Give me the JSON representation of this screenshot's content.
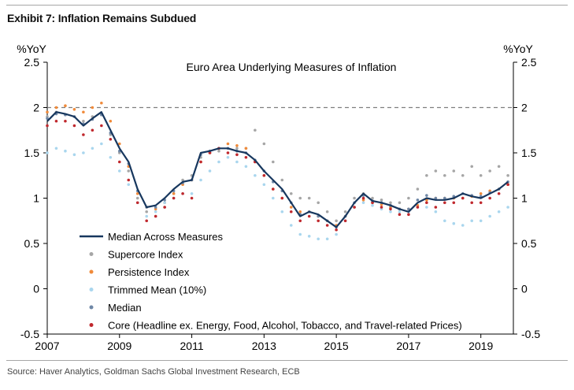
{
  "header": {
    "exhibit_title": "Exhibit 7: Inflation Remains Subdued"
  },
  "footer": {
    "source": "Source: Haver Analytics, Goldman Sachs Global Investment Research, ECB"
  },
  "colors": {
    "median_line": "#17375e",
    "supercore": "#a6a6a6",
    "persistence": "#f08a3a",
    "trimmed_mean": "#a9d6ee",
    "median_dots": "#6f87a6",
    "core": "#c0282d",
    "reference_line": "#7f7f7f"
  },
  "chart_data": {
    "type": "line",
    "title": "Euro Area Underlying Measures of Inflation",
    "ylabel_left": "%YoY",
    "ylabel_right": "%YoY",
    "ylim": [
      -0.5,
      2.5
    ],
    "yticks": [
      "2.5",
      "2",
      "1.5",
      "1",
      "0.5",
      "0",
      "-0.5"
    ],
    "xlim": [
      2007,
      2019.9
    ],
    "xticks": [
      "2007",
      "2009",
      "2011",
      "2013",
      "2015",
      "2017",
      "2019"
    ],
    "reference_line": 2,
    "legend": [
      "Median Across Measures",
      "Supercore Index",
      "Persistence Index",
      "Trimmed Mean (10%)",
      "Median",
      "Core (Headline ex. Energy, Food, Alcohol, Tobacco, and Travel-related Prices)"
    ],
    "series": [
      {
        "name": "Median Across Measures",
        "style": "line",
        "x": [
          2007.0,
          2007.25,
          2007.5,
          2007.75,
          2008.0,
          2008.25,
          2008.5,
          2008.75,
          2009.0,
          2009.25,
          2009.5,
          2009.75,
          2010.0,
          2010.25,
          2010.5,
          2010.75,
          2011.0,
          2011.25,
          2011.5,
          2011.75,
          2012.0,
          2012.25,
          2012.5,
          2012.75,
          2013.0,
          2013.25,
          2013.5,
          2013.75,
          2014.0,
          2014.25,
          2014.5,
          2014.75,
          2015.0,
          2015.25,
          2015.5,
          2015.75,
          2016.0,
          2016.25,
          2016.5,
          2016.75,
          2017.0,
          2017.25,
          2017.5,
          2017.75,
          2018.0,
          2018.25,
          2018.5,
          2018.75,
          2019.0,
          2019.25,
          2019.5,
          2019.75
        ],
        "values": [
          1.85,
          1.95,
          1.93,
          1.9,
          1.8,
          1.88,
          1.95,
          1.75,
          1.55,
          1.4,
          1.1,
          0.9,
          0.92,
          1.0,
          1.1,
          1.18,
          1.2,
          1.5,
          1.52,
          1.55,
          1.55,
          1.52,
          1.5,
          1.42,
          1.3,
          1.2,
          1.1,
          0.95,
          0.8,
          0.85,
          0.82,
          0.75,
          0.68,
          0.8,
          0.95,
          1.05,
          0.97,
          0.95,
          0.92,
          0.88,
          0.85,
          0.95,
          1.0,
          0.98,
          0.98,
          1.0,
          1.05,
          1.02,
          1.0,
          1.05,
          1.1,
          1.18
        ]
      },
      {
        "name": "Supercore Index",
        "style": "dots",
        "x": [
          2007.0,
          2007.25,
          2007.5,
          2007.75,
          2008.0,
          2008.25,
          2008.5,
          2008.75,
          2009.0,
          2009.25,
          2009.5,
          2009.75,
          2010.0,
          2010.25,
          2010.5,
          2010.75,
          2011.0,
          2011.25,
          2011.5,
          2011.75,
          2012.0,
          2012.25,
          2012.5,
          2012.75,
          2013.0,
          2013.25,
          2013.5,
          2013.75,
          2014.0,
          2014.25,
          2014.5,
          2014.75,
          2015.0,
          2015.25,
          2015.5,
          2015.75,
          2016.0,
          2016.25,
          2016.5,
          2016.75,
          2017.0,
          2017.25,
          2017.5,
          2017.75,
          2018.0,
          2018.25,
          2018.5,
          2018.75,
          2019.0,
          2019.25,
          2019.5,
          2019.75
        ],
        "values": [
          1.9,
          1.95,
          1.92,
          1.9,
          1.85,
          1.9,
          1.92,
          1.7,
          1.5,
          1.3,
          1.0,
          0.85,
          0.8,
          0.9,
          1.05,
          1.2,
          1.25,
          1.45,
          1.5,
          1.52,
          1.55,
          1.55,
          1.55,
          1.75,
          1.6,
          1.4,
          1.2,
          1.05,
          1.0,
          1.0,
          0.95,
          0.85,
          0.75,
          0.85,
          1.0,
          1.05,
          1.0,
          0.98,
          0.95,
          0.95,
          1.0,
          1.1,
          1.25,
          1.3,
          1.25,
          1.3,
          1.25,
          1.35,
          1.25,
          1.3,
          1.35,
          1.25
        ]
      },
      {
        "name": "Persistence Index",
        "style": "dots",
        "x": [
          2007.0,
          2007.25,
          2007.5,
          2007.75,
          2008.0,
          2008.25,
          2008.5,
          2008.75,
          2009.0,
          2009.25,
          2009.5,
          2009.75,
          2010.0,
          2010.25,
          2010.5,
          2010.75,
          2011.0,
          2011.25,
          2011.5,
          2011.75,
          2012.0,
          2012.25,
          2012.5,
          2012.75,
          2013.0,
          2013.25,
          2013.5,
          2013.75,
          2014.0,
          2014.25,
          2014.5,
          2014.75,
          2015.0,
          2015.25,
          2015.5,
          2015.75,
          2016.0,
          2016.25,
          2016.5,
          2016.75,
          2017.0,
          2017.25,
          2017.5,
          2017.75,
          2018.0,
          2018.25,
          2018.5,
          2018.75,
          2019.0,
          2019.25,
          2019.5,
          2019.75
        ],
        "values": [
          1.95,
          2.0,
          2.02,
          1.98,
          1.95,
          2.0,
          2.05,
          1.85,
          1.6,
          1.35,
          1.05,
          0.9,
          0.88,
          0.95,
          1.05,
          1.15,
          1.2,
          1.4,
          1.5,
          1.55,
          1.6,
          1.58,
          1.55,
          1.4,
          1.25,
          1.1,
          1.0,
          0.9,
          0.85,
          0.85,
          0.8,
          0.75,
          0.7,
          0.8,
          0.9,
          0.98,
          0.95,
          0.93,
          0.9,
          0.88,
          0.88,
          0.92,
          0.98,
          1.0,
          1.0,
          1.0,
          1.0,
          1.02,
          1.05,
          1.08,
          1.1,
          1.15
        ]
      },
      {
        "name": "Trimmed Mean (10%)",
        "style": "dots",
        "x": [
          2007.0,
          2007.25,
          2007.5,
          2007.75,
          2008.0,
          2008.25,
          2008.5,
          2008.75,
          2009.0,
          2009.25,
          2009.5,
          2009.75,
          2010.0,
          2010.25,
          2010.5,
          2010.75,
          2011.0,
          2011.25,
          2011.5,
          2011.75,
          2012.0,
          2012.25,
          2012.5,
          2012.75,
          2013.0,
          2013.25,
          2013.5,
          2013.75,
          2014.0,
          2014.25,
          2014.5,
          2014.75,
          2015.0,
          2015.25,
          2015.5,
          2015.75,
          2016.0,
          2016.25,
          2016.5,
          2016.75,
          2017.0,
          2017.25,
          2017.5,
          2017.75,
          2018.0,
          2018.25,
          2018.5,
          2018.75,
          2019.0,
          2019.25,
          2019.5,
          2019.75
        ],
        "values": [
          1.5,
          1.55,
          1.52,
          1.48,
          1.5,
          1.55,
          1.6,
          1.45,
          1.3,
          1.15,
          0.95,
          0.8,
          0.85,
          0.95,
          1.0,
          1.05,
          1.05,
          1.2,
          1.3,
          1.4,
          1.45,
          1.4,
          1.35,
          1.25,
          1.15,
          1.0,
          0.85,
          0.7,
          0.6,
          0.58,
          0.55,
          0.55,
          0.6,
          0.75,
          0.9,
          0.95,
          0.92,
          0.88,
          0.85,
          0.85,
          0.85,
          0.9,
          0.9,
          0.85,
          0.75,
          0.72,
          0.7,
          0.75,
          0.75,
          0.8,
          0.85,
          0.9
        ]
      },
      {
        "name": "Median",
        "style": "dots",
        "x": [
          2007.0,
          2007.25,
          2007.5,
          2007.75,
          2008.0,
          2008.25,
          2008.5,
          2008.75,
          2009.0,
          2009.25,
          2009.5,
          2009.75,
          2010.0,
          2010.25,
          2010.5,
          2010.75,
          2011.0,
          2011.25,
          2011.5,
          2011.75,
          2012.0,
          2012.25,
          2012.5,
          2012.75,
          2013.0,
          2013.25,
          2013.5,
          2013.75,
          2014.0,
          2014.25,
          2014.5,
          2014.75,
          2015.0,
          2015.25,
          2015.5,
          2015.75,
          2016.0,
          2016.25,
          2016.5,
          2016.75,
          2017.0,
          2017.25,
          2017.5,
          2017.75,
          2018.0,
          2018.25,
          2018.5,
          2018.75,
          2019.0,
          2019.25,
          2019.5,
          2019.75
        ],
        "values": [
          1.88,
          1.93,
          1.92,
          1.9,
          1.82,
          1.87,
          1.92,
          1.72,
          1.52,
          1.38,
          1.08,
          0.9,
          0.9,
          0.98,
          1.08,
          1.17,
          1.2,
          1.48,
          1.52,
          1.55,
          1.55,
          1.52,
          1.5,
          1.42,
          1.3,
          1.18,
          1.08,
          0.95,
          0.82,
          0.85,
          0.8,
          0.75,
          0.68,
          0.8,
          0.95,
          1.03,
          0.97,
          0.95,
          0.92,
          0.88,
          0.88,
          0.98,
          1.03,
          1.0,
          1.0,
          1.02,
          1.05,
          1.03,
          1.02,
          1.06,
          1.1,
          1.18
        ]
      },
      {
        "name": "Core (Headline ex. Energy, Food, Alcohol, Tobacco, and Travel-related Prices)",
        "style": "dots",
        "x": [
          2007.0,
          2007.25,
          2007.5,
          2007.75,
          2008.0,
          2008.25,
          2008.5,
          2008.75,
          2009.0,
          2009.25,
          2009.5,
          2009.75,
          2010.0,
          2010.25,
          2010.5,
          2010.75,
          2011.0,
          2011.25,
          2011.5,
          2011.75,
          2012.0,
          2012.25,
          2012.5,
          2012.75,
          2013.0,
          2013.25,
          2013.5,
          2013.75,
          2014.0,
          2014.25,
          2014.5,
          2014.75,
          2015.0,
          2015.25,
          2015.5,
          2015.75,
          2016.0,
          2016.25,
          2016.5,
          2016.75,
          2017.0,
          2017.25,
          2017.5,
          2017.75,
          2018.0,
          2018.25,
          2018.5,
          2018.75,
          2019.0,
          2019.25,
          2019.5,
          2019.75
        ],
        "values": [
          1.8,
          1.85,
          1.85,
          1.8,
          1.7,
          1.75,
          1.8,
          1.65,
          1.4,
          1.2,
          0.95,
          0.75,
          0.8,
          0.9,
          1.0,
          1.05,
          1.0,
          1.4,
          1.5,
          1.55,
          1.5,
          1.48,
          1.45,
          1.4,
          1.25,
          1.1,
          1.0,
          0.85,
          0.75,
          0.8,
          0.75,
          0.7,
          0.65,
          0.75,
          0.9,
          1.0,
          0.95,
          0.9,
          0.88,
          0.82,
          0.82,
          0.9,
          0.95,
          0.9,
          0.95,
          0.95,
          1.0,
          0.95,
          0.95,
          1.0,
          1.05,
          1.15
        ]
      }
    ]
  }
}
